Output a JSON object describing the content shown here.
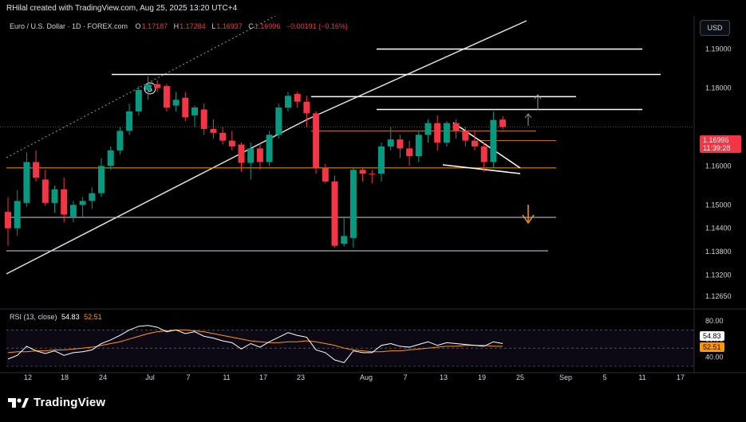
{
  "header": {
    "credit": "RHilal created with TradingView.com, Aug 25, 2025 13:20 UTC+4"
  },
  "legend": {
    "symbol": "Euro / U.S. Dollar · 1D · FOREX.com",
    "open_label": "O",
    "open": "1.17187",
    "high_label": "H",
    "high": "1.17284",
    "low_label": "L",
    "low": "1.16937",
    "close_label": "C",
    "close": "1.16996",
    "change": "−0.00191 (−0.16%)"
  },
  "currency_button": "USD",
  "price_axis": {
    "labels": [
      "1.19000",
      "1.18000",
      "1.16000",
      "1.15000",
      "1.14400",
      "1.13800",
      "1.13200",
      "1.12650"
    ],
    "current_price": "1.16996",
    "countdown": "11:39:28"
  },
  "rsi": {
    "label": "RSI (13, close)",
    "value": "54.83",
    "ma_value": "52.51",
    "axis_top": "80.00",
    "axis_mid": "60.00",
    "axis_low": "40.00"
  },
  "time_axis": {
    "labels": [
      "12",
      "18",
      "24",
      "Jul",
      "7",
      "11",
      "17",
      "23",
      "Aug",
      "7",
      "13",
      "19",
      "25",
      "Sep",
      "5",
      "11",
      "17"
    ]
  },
  "annotations": {
    "wave_label": "5"
  },
  "logo": {
    "text": "TradingView"
  },
  "colors": {
    "up": "#089981",
    "down": "#f23645",
    "rsi_line": "#ffffff",
    "rsi_ma": "#ff9800",
    "arrow_down": "#ff9800"
  },
  "chart_data": {
    "type": "candlestick",
    "title": "Euro / U.S. Dollar · 1D · FOREX.com",
    "y_range": [
      1.1245,
      1.1975
    ],
    "x_labels": [
      "12",
      "18",
      "24",
      "Jul",
      "7",
      "11",
      "17",
      "23",
      "Aug",
      "7",
      "13",
      "19",
      "25",
      "Sep",
      "5",
      "11",
      "17"
    ],
    "candles": [
      {
        "o": 1.1482,
        "h": 1.152,
        "l": 1.1395,
        "c": 1.144
      },
      {
        "o": 1.144,
        "h": 1.1538,
        "l": 1.142,
        "c": 1.151
      },
      {
        "o": 1.1505,
        "h": 1.1635,
        "l": 1.1495,
        "c": 1.161
      },
      {
        "o": 1.161,
        "h": 1.164,
        "l": 1.156,
        "c": 1.157
      },
      {
        "o": 1.1565,
        "h": 1.159,
        "l": 1.1498,
        "c": 1.1505
      },
      {
        "o": 1.1505,
        "h": 1.155,
        "l": 1.148,
        "c": 1.154
      },
      {
        "o": 1.154,
        "h": 1.157,
        "l": 1.1455,
        "c": 1.1475
      },
      {
        "o": 1.147,
        "h": 1.151,
        "l": 1.1456,
        "c": 1.15
      },
      {
        "o": 1.15,
        "h": 1.152,
        "l": 1.147,
        "c": 1.151
      },
      {
        "o": 1.151,
        "h": 1.1545,
        "l": 1.149,
        "c": 1.153
      },
      {
        "o": 1.153,
        "h": 1.162,
        "l": 1.152,
        "c": 1.16
      },
      {
        "o": 1.16,
        "h": 1.165,
        "l": 1.159,
        "c": 1.164
      },
      {
        "o": 1.164,
        "h": 1.17,
        "l": 1.163,
        "c": 1.169
      },
      {
        "o": 1.169,
        "h": 1.176,
        "l": 1.168,
        "c": 1.174
      },
      {
        "o": 1.174,
        "h": 1.1805,
        "l": 1.173,
        "c": 1.1795
      },
      {
        "o": 1.1795,
        "h": 1.183,
        "l": 1.177,
        "c": 1.181
      },
      {
        "o": 1.181,
        "h": 1.182,
        "l": 1.179,
        "c": 1.18
      },
      {
        "o": 1.1805,
        "h": 1.181,
        "l": 1.174,
        "c": 1.175
      },
      {
        "o": 1.1755,
        "h": 1.179,
        "l": 1.174,
        "c": 1.177
      },
      {
        "o": 1.1775,
        "h": 1.179,
        "l": 1.1715,
        "c": 1.1725
      },
      {
        "o": 1.173,
        "h": 1.1755,
        "l": 1.17,
        "c": 1.175
      },
      {
        "o": 1.1745,
        "h": 1.176,
        "l": 1.168,
        "c": 1.1695
      },
      {
        "o": 1.1695,
        "h": 1.172,
        "l": 1.167,
        "c": 1.1685
      },
      {
        "o": 1.1685,
        "h": 1.17,
        "l": 1.1655,
        "c": 1.1665
      },
      {
        "o": 1.1665,
        "h": 1.169,
        "l": 1.164,
        "c": 1.165
      },
      {
        "o": 1.1655,
        "h": 1.166,
        "l": 1.1585,
        "c": 1.1608
      },
      {
        "o": 1.1608,
        "h": 1.166,
        "l": 1.1565,
        "c": 1.1645
      },
      {
        "o": 1.1645,
        "h": 1.166,
        "l": 1.159,
        "c": 1.161
      },
      {
        "o": 1.161,
        "h": 1.169,
        "l": 1.16,
        "c": 1.168
      },
      {
        "o": 1.168,
        "h": 1.176,
        "l": 1.167,
        "c": 1.175
      },
      {
        "o": 1.175,
        "h": 1.179,
        "l": 1.174,
        "c": 1.178
      },
      {
        "o": 1.1785,
        "h": 1.179,
        "l": 1.175,
        "c": 1.1765
      },
      {
        "o": 1.1765,
        "h": 1.178,
        "l": 1.17,
        "c": 1.1735
      },
      {
        "o": 1.1735,
        "h": 1.174,
        "l": 1.158,
        "c": 1.1595
      },
      {
        "o": 1.1595,
        "h": 1.1605,
        "l": 1.1555,
        "c": 1.156
      },
      {
        "o": 1.156,
        "h": 1.1575,
        "l": 1.139,
        "c": 1.1395
      },
      {
        "o": 1.14,
        "h": 1.147,
        "l": 1.1393,
        "c": 1.142
      },
      {
        "o": 1.1415,
        "h": 1.1595,
        "l": 1.139,
        "c": 1.159
      },
      {
        "o": 1.159,
        "h": 1.1595,
        "l": 1.156,
        "c": 1.158
      },
      {
        "o": 1.158,
        "h": 1.159,
        "l": 1.1555,
        "c": 1.1578
      },
      {
        "o": 1.158,
        "h": 1.166,
        "l": 1.156,
        "c": 1.165
      },
      {
        "o": 1.165,
        "h": 1.17,
        "l": 1.164,
        "c": 1.1668
      },
      {
        "o": 1.1668,
        "h": 1.168,
        "l": 1.162,
        "c": 1.1645
      },
      {
        "o": 1.1645,
        "h": 1.1665,
        "l": 1.16,
        "c": 1.1625
      },
      {
        "o": 1.1625,
        "h": 1.169,
        "l": 1.161,
        "c": 1.168
      },
      {
        "o": 1.168,
        "h": 1.172,
        "l": 1.166,
        "c": 1.171
      },
      {
        "o": 1.171,
        "h": 1.173,
        "l": 1.164,
        "c": 1.166
      },
      {
        "o": 1.166,
        "h": 1.1715,
        "l": 1.165,
        "c": 1.171
      },
      {
        "o": 1.171,
        "h": 1.172,
        "l": 1.167,
        "c": 1.169
      },
      {
        "o": 1.169,
        "h": 1.17,
        "l": 1.165,
        "c": 1.1665
      },
      {
        "o": 1.1665,
        "h": 1.169,
        "l": 1.164,
        "c": 1.165
      },
      {
        "o": 1.165,
        "h": 1.166,
        "l": 1.1585,
        "c": 1.161
      },
      {
        "o": 1.161,
        "h": 1.174,
        "l": 1.1595,
        "c": 1.1718
      },
      {
        "o": 1.1719,
        "h": 1.1728,
        "l": 1.1694,
        "c": 1.17
      }
    ],
    "horizontal_levels": [
      1.19,
      1.1835,
      1.1778,
      1.1745,
      1.169,
      1.1665,
      1.1595,
      1.1468,
      1.1382
    ],
    "rsi": {
      "y_range": [
        30,
        80
      ],
      "rsi_values": [
        38,
        42,
        52,
        47,
        44,
        47,
        42,
        45,
        46,
        48,
        55,
        59,
        64,
        70,
        74,
        75,
        73,
        68,
        70,
        66,
        68,
        63,
        61,
        58,
        56,
        49,
        55,
        51,
        57,
        62,
        67,
        64,
        62,
        48,
        45,
        37,
        34,
        47,
        45,
        45,
        53,
        55,
        52,
        51,
        54,
        57,
        53,
        56,
        55,
        54,
        53,
        52,
        57,
        55
      ],
      "ma_values": [
        45,
        46,
        46,
        47,
        47,
        48,
        48,
        49,
        50,
        51,
        53,
        55,
        57,
        60,
        63,
        66,
        68,
        69,
        70,
        70,
        69,
        68,
        66,
        64,
        62,
        60,
        58,
        57,
        56,
        56,
        57,
        57,
        58,
        57,
        55,
        53,
        50,
        48,
        47,
        46,
        46,
        47,
        47,
        48,
        49,
        50,
        51,
        52,
        52,
        53,
        53,
        53,
        52,
        52
      ]
    }
  }
}
